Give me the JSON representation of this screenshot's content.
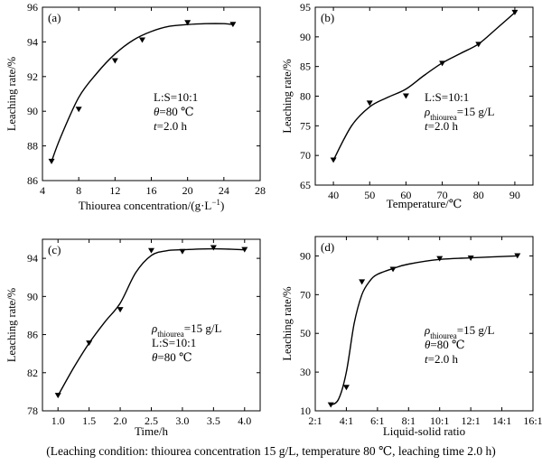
{
  "caption": "(Leaching condition: thiourea concentration 15 g/L, temperature 80 ℃, leaching time 2.0 h)",
  "chart_data": [
    {
      "type": "line",
      "panel_label": "(a)",
      "xlabel": "Thiourea concentration/(g·L",
      "xlabel_sup": "−1",
      "xlabel_end": ")",
      "ylabel": "Leaching rate/%",
      "xlim": [
        4,
        28
      ],
      "ylim": [
        86,
        96
      ],
      "xticks": [
        4,
        8,
        12,
        16,
        20,
        24,
        28
      ],
      "yticks": [
        86,
        88,
        90,
        92,
        94,
        96
      ],
      "xticklabels": [
        "4",
        "8",
        "12",
        "16",
        "20",
        "24",
        "28"
      ],
      "yticklabels": [
        "86",
        "88",
        "90",
        "92",
        "94",
        "96"
      ],
      "points": {
        "x": [
          5,
          8,
          12,
          15,
          20,
          25
        ],
        "y": [
          87.1,
          90.1,
          92.9,
          94.1,
          95.1,
          95.0
        ]
      },
      "curve": {
        "x": [
          5,
          6,
          8,
          10,
          12,
          14,
          16,
          18,
          20,
          22,
          24,
          25
        ],
        "y": [
          87.1,
          88.5,
          90.8,
          92.2,
          93.3,
          94.1,
          94.6,
          94.9,
          95.0,
          95.05,
          95.05,
          95.0
        ]
      },
      "annotations": [
        {
          "label": "L:S=10:1"
        },
        {
          "label": "θ",
          "rest": "=80 ℃"
        },
        {
          "label": "t",
          "rest": "=2.0 h"
        }
      ]
    },
    {
      "type": "line",
      "panel_label": "(b)",
      "xlabel": "Temperature/℃",
      "ylabel": "Leaching rate/%",
      "xlim": [
        35,
        95
      ],
      "ylim": [
        65,
        95
      ],
      "xticks": [
        40,
        50,
        60,
        70,
        80,
        90
      ],
      "yticks": [
        65,
        70,
        75,
        80,
        85,
        90,
        95
      ],
      "xticklabels": [
        "40",
        "50",
        "60",
        "70",
        "80",
        "90"
      ],
      "yticklabels": [
        "65",
        "70",
        "75",
        "80",
        "85",
        "90",
        "95"
      ],
      "points": {
        "x": [
          40,
          50,
          60,
          70,
          80,
          90
        ],
        "y": [
          69.2,
          78.8,
          80.0,
          85.5,
          88.7,
          94.1
        ]
      },
      "curve": {
        "x": [
          40,
          45,
          50,
          55,
          60,
          65,
          70,
          75,
          80,
          85,
          90
        ],
        "y": [
          69.2,
          75.0,
          78.2,
          79.8,
          81.2,
          83.5,
          85.6,
          87.2,
          88.8,
          91.4,
          94.1
        ]
      },
      "annotations": [
        {
          "label": "L:S=10:1"
        },
        {
          "label": "ρ",
          "sub": "thiourea",
          "rest": "=15 g/L"
        },
        {
          "label": "t",
          "rest": "=2.0 h"
        }
      ]
    },
    {
      "type": "line",
      "panel_label": "(c)",
      "xlabel": "Time/h",
      "ylabel": "Leaching rate/%",
      "xlim": [
        0.75,
        4.25
      ],
      "ylim": [
        78,
        96
      ],
      "xticks": [
        1.0,
        1.5,
        2.0,
        2.5,
        3.0,
        3.5,
        4.0
      ],
      "yticks": [
        78,
        82,
        86,
        90,
        94
      ],
      "xticklabels": [
        "1.0",
        "1.5",
        "2.0",
        "2.5",
        "3.0",
        "3.5",
        "4.0"
      ],
      "yticklabels": [
        "78",
        "82",
        "86",
        "90",
        "94"
      ],
      "points": {
        "x": [
          1.0,
          1.5,
          2.0,
          2.5,
          3.0,
          3.5,
          4.0
        ],
        "y": [
          79.6,
          85.1,
          88.6,
          94.8,
          94.7,
          95.1,
          94.9
        ]
      },
      "curve": {
        "x": [
          1.0,
          1.25,
          1.5,
          1.75,
          2.0,
          2.25,
          2.5,
          2.75,
          3.0,
          3.5,
          4.0
        ],
        "y": [
          79.6,
          82.5,
          85.1,
          87.3,
          89.3,
          92.5,
          94.3,
          94.8,
          94.9,
          95.0,
          94.9
        ]
      },
      "annotations": [
        {
          "label": "ρ",
          "sub": "thiourea",
          "rest": "=15 g/L"
        },
        {
          "label": "L:S=10:1"
        },
        {
          "label": "θ",
          "rest": "=80 ℃"
        }
      ]
    },
    {
      "type": "line",
      "panel_label": "(d)",
      "xlabel": "Liquid-solid ratio",
      "ylabel": "Leaching rate/%",
      "xlim": [
        2,
        16
      ],
      "ylim": [
        10,
        100
      ],
      "xticks": [
        2,
        4,
        6,
        8,
        10,
        12,
        14,
        16
      ],
      "yticks": [
        10,
        30,
        50,
        70,
        90
      ],
      "xticklabels": [
        "2:1",
        "4:1",
        "6:1",
        "8:1",
        "10:1",
        "12:1",
        "14:1",
        "16:1"
      ],
      "yticklabels": [
        "10",
        "30",
        "50",
        "70",
        "90"
      ],
      "points": {
        "x": [
          3,
          4,
          5,
          7,
          10,
          12,
          15
        ],
        "y": [
          13,
          22,
          76.5,
          83,
          88.5,
          88.8,
          90
        ]
      },
      "curve": {
        "x": [
          3,
          3.5,
          4,
          4.5,
          5,
          5.5,
          6,
          7,
          8,
          10,
          12,
          15
        ],
        "y": [
          13,
          16,
          30,
          55,
          70,
          77,
          80.5,
          83.5,
          85.8,
          88.2,
          89,
          90
        ]
      },
      "annotations": [
        {
          "label": "ρ",
          "sub": "thiourea",
          "rest": "=15 g/L"
        },
        {
          "label": "θ",
          "rest": "=80 ℃"
        },
        {
          "label": "t",
          "rest": "=2.0 h"
        }
      ]
    }
  ]
}
